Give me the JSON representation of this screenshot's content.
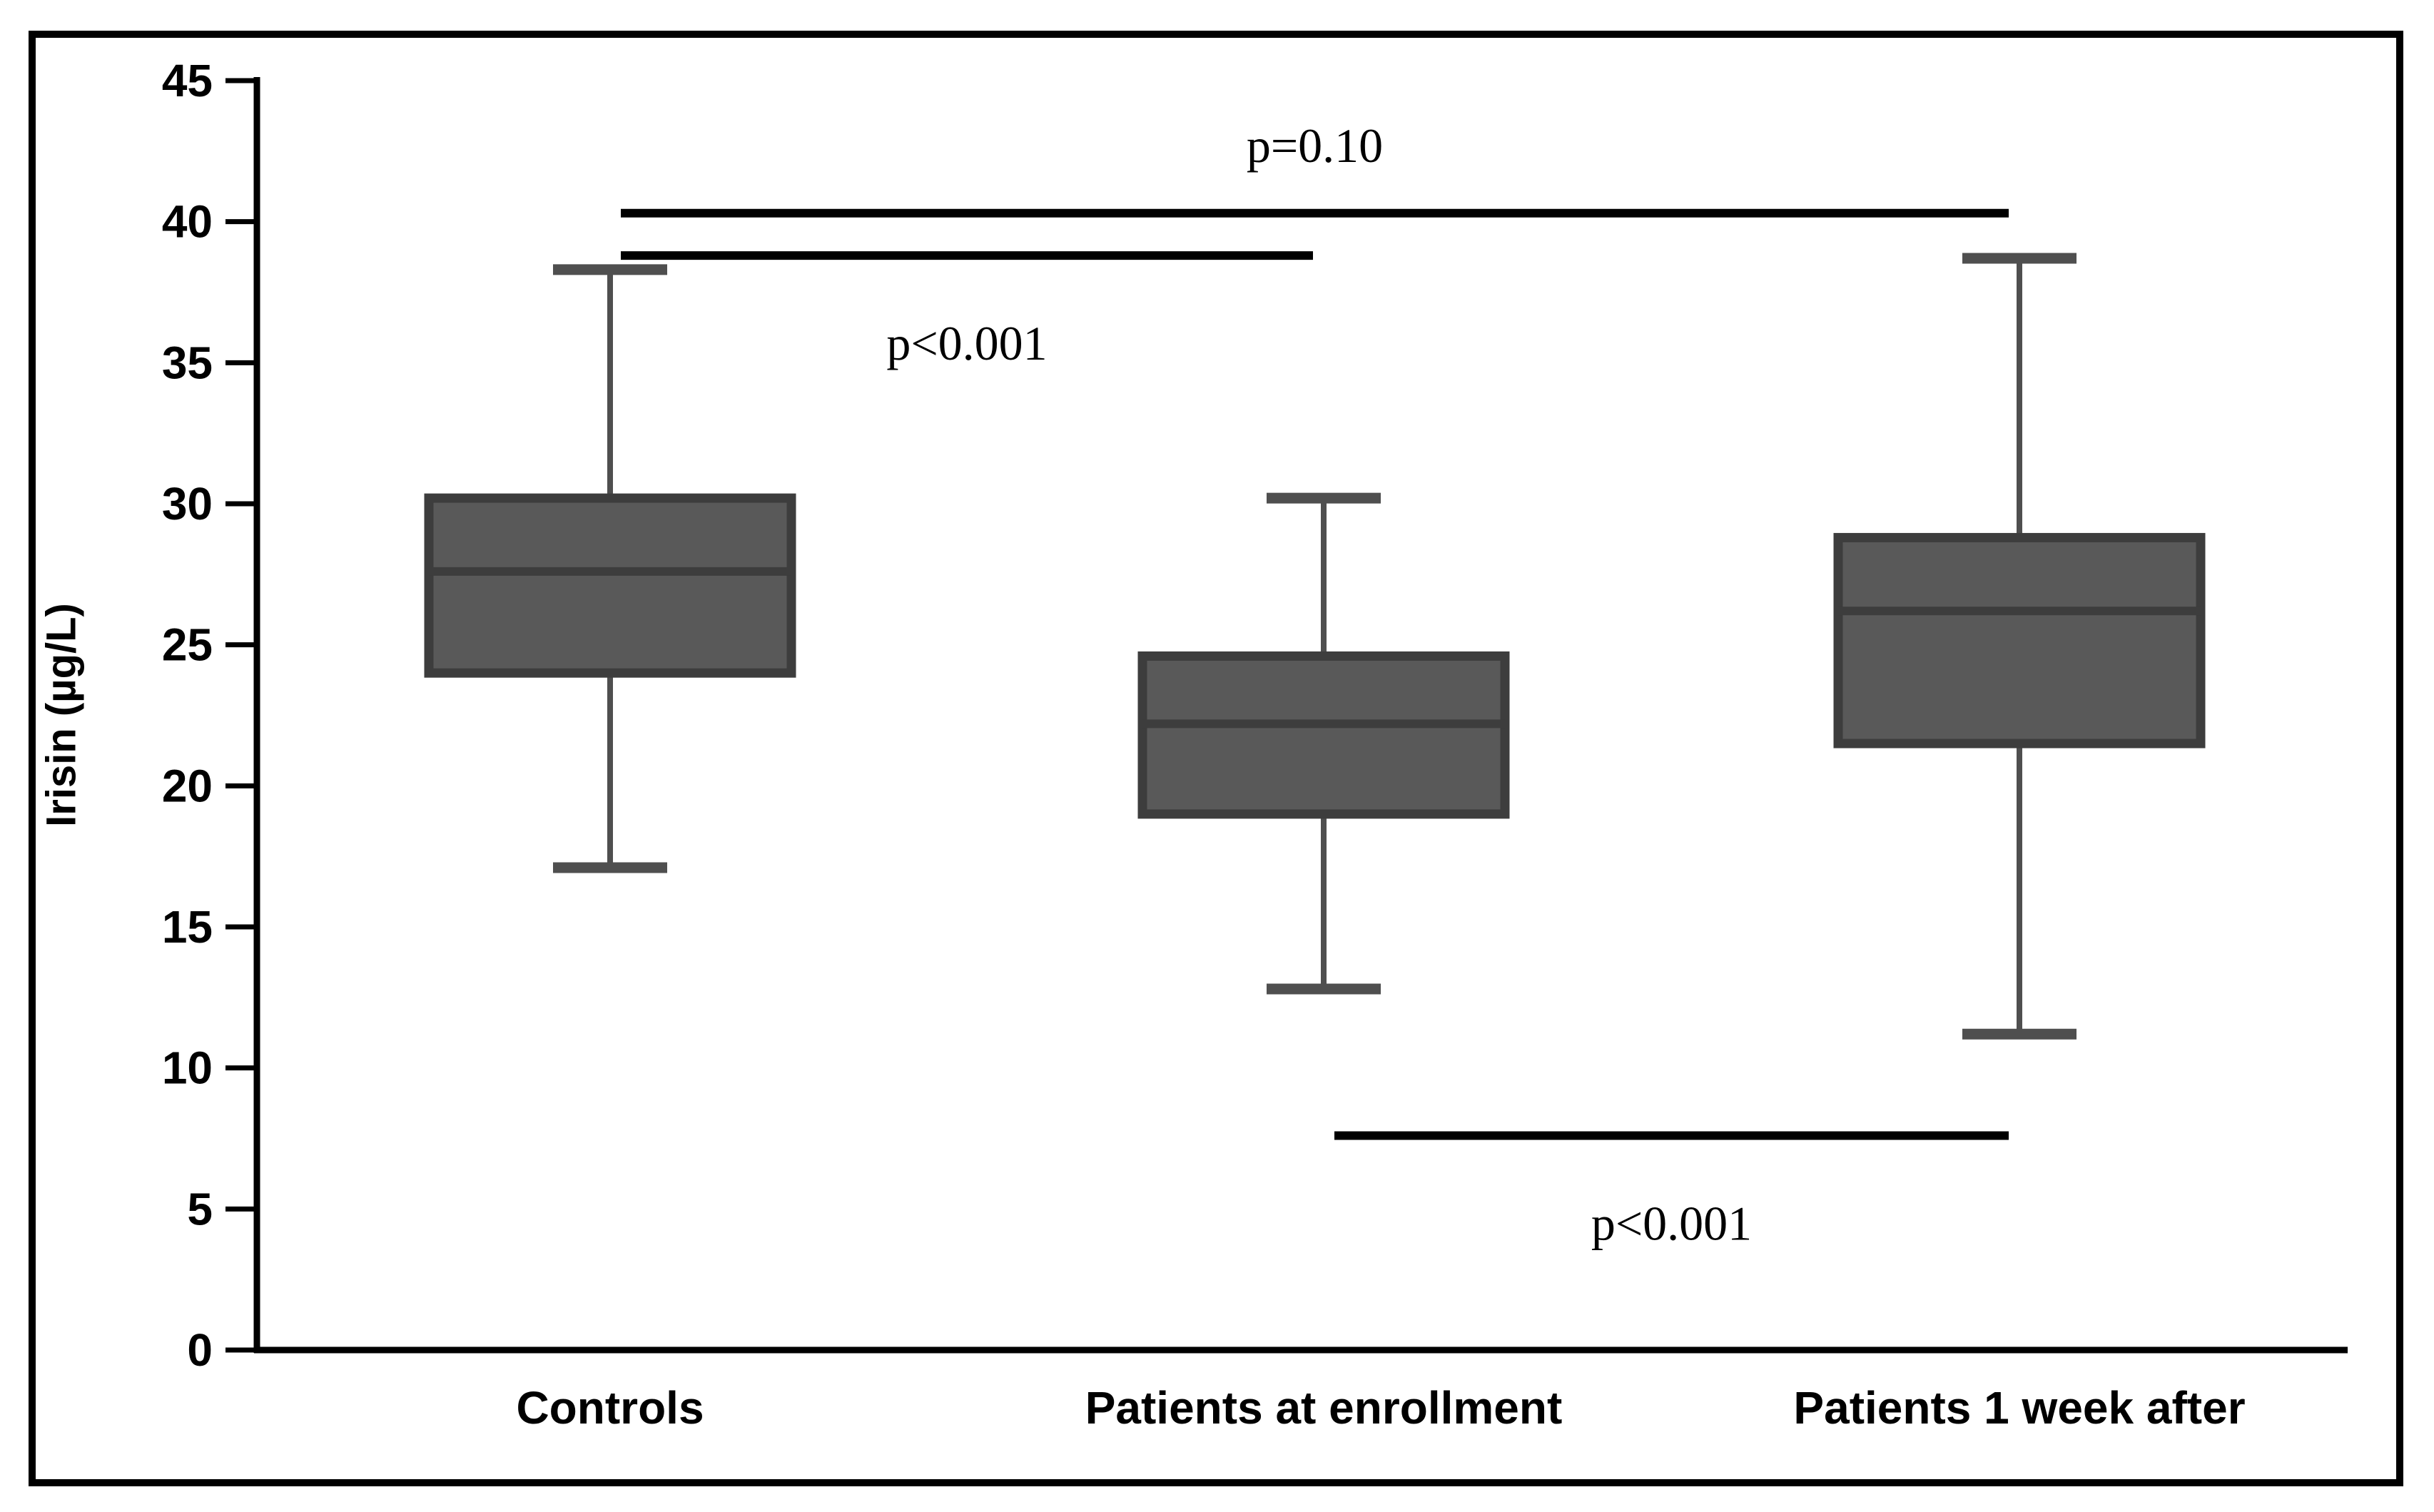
{
  "figure": {
    "border_color": "#000000",
    "background_color": "#ffffff"
  },
  "chart_data": {
    "type": "boxplot",
    "title": "",
    "xlabel": "",
    "ylabel": "Irisin (µg/L)",
    "ylim": [
      0,
      45
    ],
    "yticks": [
      45,
      40,
      35,
      30,
      25,
      20,
      15,
      10,
      5,
      0
    ],
    "grid": false,
    "legend": "none",
    "categories": [
      "Controls",
      "Patients at enrollment",
      "Patients 1 week after"
    ],
    "series": [
      {
        "name": "Controls",
        "whisker_low": 17.1,
        "q1": 24.0,
        "median": 27.6,
        "q3": 30.2,
        "whisker_high": 38.3
      },
      {
        "name": "Patients at enrollment",
        "whisker_low": 12.8,
        "q1": 19.0,
        "median": 22.2,
        "q3": 24.6,
        "whisker_high": 30.2
      },
      {
        "name": "Patients 1 week after",
        "whisker_low": 11.2,
        "q1": 21.5,
        "median": 26.2,
        "q3": 28.8,
        "whisker_high": 38.7
      }
    ],
    "annotations": [
      {
        "label": "p=0.10",
        "between": [
          0,
          2
        ],
        "y_value": 40.3,
        "label_side": "above"
      },
      {
        "label": "p<0.001",
        "between": [
          0,
          1
        ],
        "y_value": 38.8,
        "label_side": "below"
      },
      {
        "label": "p<0.001",
        "between": [
          1,
          2
        ],
        "y_value": 7.6,
        "label_side": "below"
      }
    ],
    "box_fill": "#595959",
    "box_edge": "#3d3d3d",
    "whisker_color": "#4f4f4f",
    "axis_color": "#000000",
    "annotation_line_color": "#000000"
  }
}
